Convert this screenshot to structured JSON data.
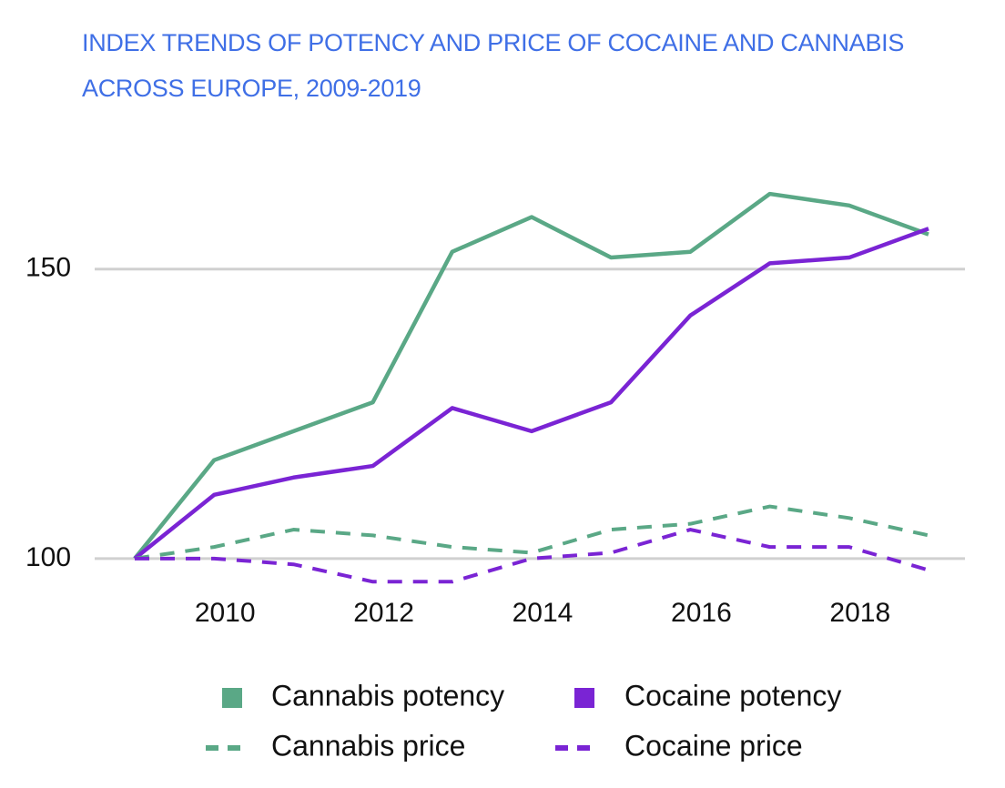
{
  "chart_data": {
    "type": "line",
    "title": "INDEX TRENDS OF POTENCY AND PRICE OF COCAINE AND CANNABIS ACROSS EUROPE, 2009-2019",
    "x": [
      2009,
      2010,
      2011,
      2012,
      2013,
      2014,
      2015,
      2016,
      2017,
      2018,
      2019
    ],
    "series": [
      {
        "name": "Cannabis potency",
        "color": "#5aa886",
        "dashed": false,
        "values": [
          100,
          117,
          122,
          127,
          153,
          159,
          152,
          153,
          163,
          161,
          156
        ]
      },
      {
        "name": "Cocaine potency",
        "color": "#7a24d4",
        "dashed": false,
        "values": [
          100,
          111,
          114,
          116,
          126,
          122,
          127,
          142,
          151,
          152,
          157
        ]
      },
      {
        "name": "Cannabis price",
        "color": "#5aa886",
        "dashed": true,
        "values": [
          100,
          102,
          105,
          104,
          102,
          101,
          105,
          106,
          109,
          107,
          104
        ]
      },
      {
        "name": "Cocaine price",
        "color": "#7a24d4",
        "dashed": true,
        "values": [
          100,
          100,
          99,
          96,
          96,
          100,
          101,
          105,
          102,
          102,
          98
        ]
      }
    ],
    "xlim": [
      2009,
      2019
    ],
    "xticks": [
      2010,
      2012,
      2014,
      2016,
      2018
    ],
    "ylim": [
      94,
      166
    ],
    "yticks": [
      100,
      150
    ],
    "grid": true,
    "legend": "bottom"
  }
}
